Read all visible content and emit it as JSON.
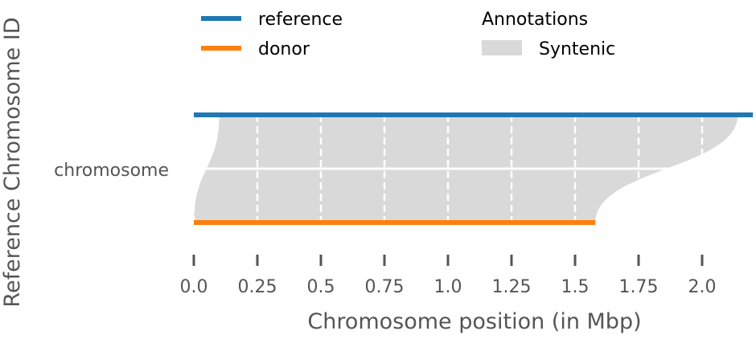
{
  "chart_data": {
    "type": "area",
    "title": "",
    "xlabel": "Chromosome position (in Mbp)",
    "ylabel": "Reference Chromosome ID",
    "categories": [
      "chromosome"
    ],
    "xlim": [
      0,
      2.2
    ],
    "xticks": [
      0.0,
      0.25,
      0.5,
      0.75,
      1.0,
      1.25,
      1.5,
      1.75,
      2.0
    ],
    "xtick_labels": [
      "0.0",
      "0.25",
      "0.5",
      "0.75",
      "1.0",
      "1.25",
      "1.5",
      "1.75",
      "2.0"
    ],
    "grid": true,
    "legend": {
      "placement": "top",
      "series_entries": [
        {
          "name": "reference",
          "color": "#1f77b4"
        },
        {
          "name": "donor",
          "color": "#ff7f0e"
        }
      ],
      "annotations_title": "Annotations",
      "annotation_entries": [
        {
          "name": "Syntenic",
          "color": "#d9d9d9"
        }
      ]
    },
    "series": [
      {
        "name": "reference",
        "color": "#1f77b4",
        "x": [
          0.0,
          2.2
        ]
      },
      {
        "name": "donor",
        "color": "#ff7f0e",
        "x": [
          0.0,
          1.58
        ]
      }
    ],
    "annotations": [
      {
        "type": "Syntenic",
        "color": "#d9d9d9",
        "reference": [
          0.1,
          2.14
        ],
        "donor": [
          0.0,
          1.58
        ]
      }
    ]
  }
}
